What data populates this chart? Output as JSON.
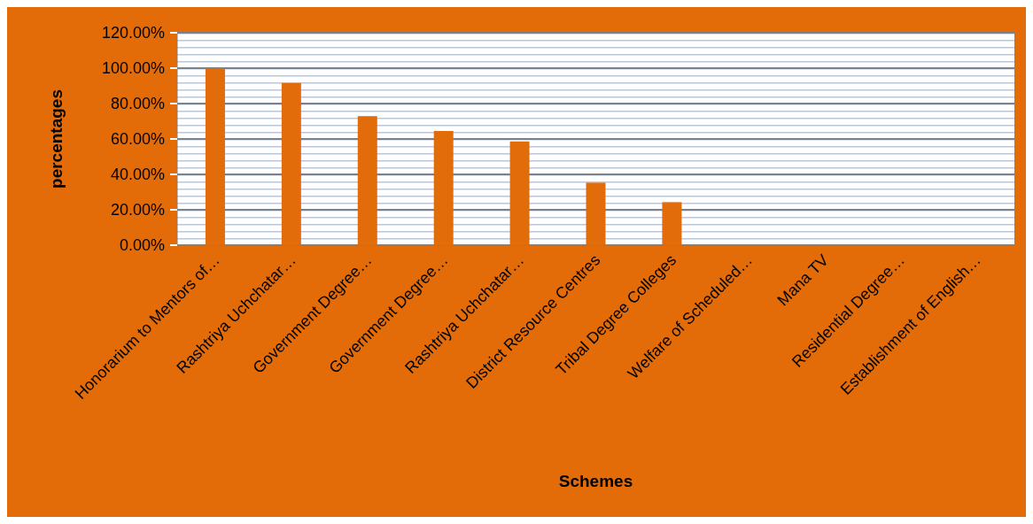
{
  "chart_data": {
    "type": "bar",
    "xlabel": "Schemes",
    "ylabel": "percentages",
    "categories": [
      "Honorarium to Mentors of…",
      "Rashtriya Uchchatar…",
      "Government Degree…",
      "Government Degree…",
      "Rashtriya Uchchatar…",
      "District Resource Centres",
      "Tribal Degree Colleges",
      "Welfare of Scheduled…",
      "Mana TV",
      "Residential Degree…",
      "Establishment of English…"
    ],
    "values": [
      100,
      91.6,
      72.9,
      64.5,
      58.6,
      35.3,
      24.3,
      0,
      0,
      0,
      0
    ],
    "color": "#e36c0a",
    "ylim": [
      0,
      120
    ],
    "yticks": [
      {
        "value": 0,
        "label": "0.00%"
      },
      {
        "value": 20,
        "label": "20.00%"
      },
      {
        "value": 40,
        "label": "40.00%"
      },
      {
        "value": 60,
        "label": "60.00%"
      },
      {
        "value": 80,
        "label": "80.00%"
      },
      {
        "value": 100,
        "label": "100.00%"
      },
      {
        "value": 120,
        "label": "120.00%"
      }
    ],
    "grid": "y"
  }
}
